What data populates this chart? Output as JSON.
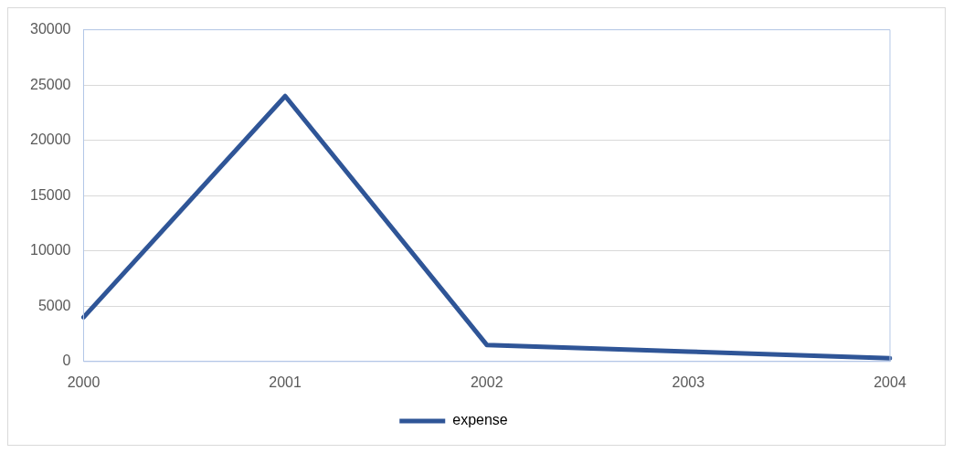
{
  "chart_data": {
    "type": "line",
    "categories": [
      "2000",
      "2001",
      "2002",
      "2003",
      "2004"
    ],
    "series": [
      {
        "name": "expense",
        "color": "#2f5597",
        "values": [
          4000,
          24000,
          1500,
          900,
          300
        ]
      }
    ],
    "ylim": [
      0,
      30000
    ],
    "yticks": [
      0,
      5000,
      10000,
      15000,
      20000,
      25000,
      30000
    ],
    "grid": "y",
    "legend": "bottom",
    "marker": "none",
    "line_style": "solid"
  }
}
